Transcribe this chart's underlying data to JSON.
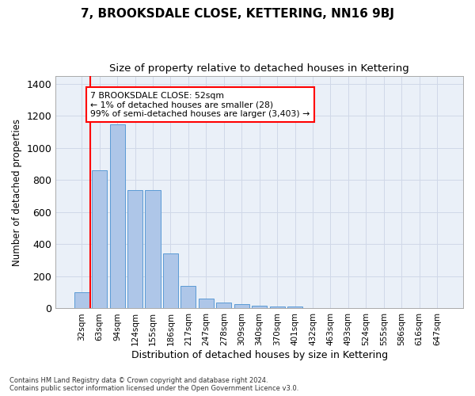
{
  "title": "7, BROOKSDALE CLOSE, KETTERING, NN16 9BJ",
  "subtitle": "Size of property relative to detached houses in Kettering",
  "xlabel": "Distribution of detached houses by size in Kettering",
  "ylabel": "Number of detached properties",
  "categories": [
    "32sqm",
    "63sqm",
    "94sqm",
    "124sqm",
    "155sqm",
    "186sqm",
    "217sqm",
    "247sqm",
    "278sqm",
    "309sqm",
    "340sqm",
    "370sqm",
    "401sqm",
    "432sqm",
    "463sqm",
    "493sqm",
    "524sqm",
    "555sqm",
    "586sqm",
    "616sqm",
    "647sqm"
  ],
  "values": [
    100,
    860,
    1145,
    735,
    735,
    345,
    140,
    62,
    35,
    25,
    18,
    12,
    12,
    0,
    0,
    0,
    0,
    0,
    0,
    0,
    0
  ],
  "bar_color": "#aec6e8",
  "bar_edge_color": "#5b9bd5",
  "annotation_box_text": "7 BROOKSDALE CLOSE: 52sqm\n← 1% of detached houses are smaller (28)\n99% of semi-detached houses are larger (3,403) →",
  "ylim": [
    0,
    1450
  ],
  "yticks": [
    0,
    200,
    400,
    600,
    800,
    1000,
    1200,
    1400
  ],
  "grid_color": "#d0d8e8",
  "bg_color": "#eaf0f8",
  "footer_line1": "Contains HM Land Registry data © Crown copyright and database right 2024.",
  "footer_line2": "Contains public sector information licensed under the Open Government Licence v3.0.",
  "red_line_bar_index": 0.5,
  "title_fontsize": 11,
  "subtitle_fontsize": 9.5
}
